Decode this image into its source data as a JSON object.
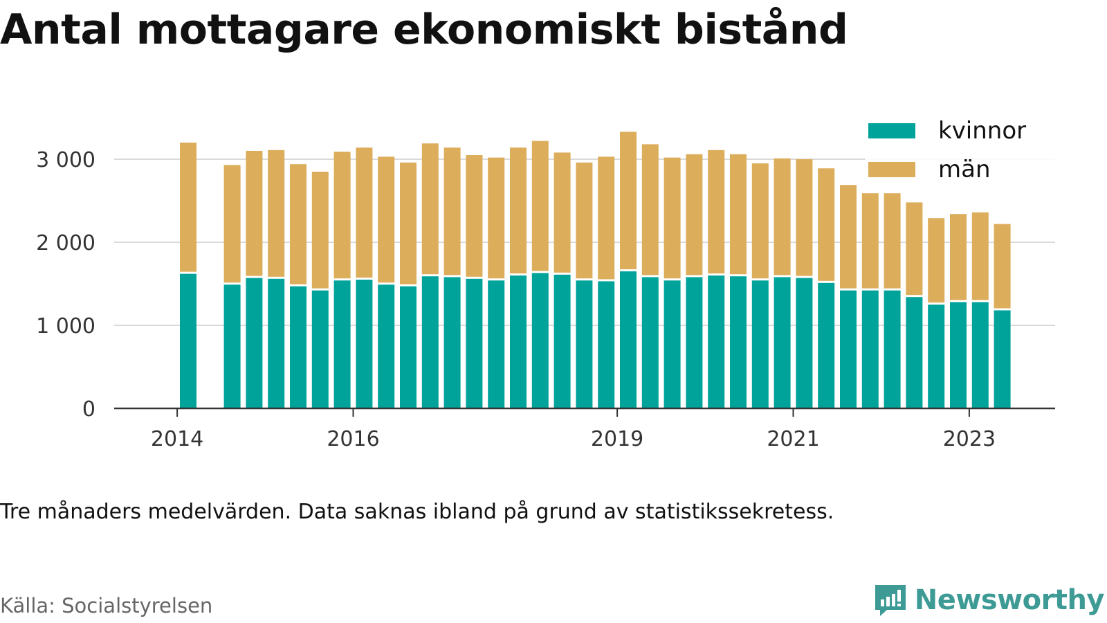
{
  "title": "Antal mottagare ekonomiskt bistånd",
  "note": "Tre månaders medelvärden. Data saknas ibland på grund av statistikssekretess.",
  "source": "Källa: Socialstyrelsen",
  "brand": "Newsworthy",
  "colors": {
    "kvinnor": "#00a39a",
    "man": "#dcad5a",
    "grid": "#d9d9d9",
    "axis": "#333333"
  },
  "chart_data": {
    "type": "bar",
    "stacked": true,
    "x_unit": "quarter",
    "x": [
      "2014-Q2",
      "2014-Q3",
      "2014-Q4",
      "2015-Q1",
      "2015-Q2",
      "2015-Q3",
      "2015-Q4",
      "2016-Q1",
      "2016-Q2",
      "2016-Q3",
      "2016-Q4",
      "2017-Q1",
      "2017-Q2",
      "2017-Q3",
      "2017-Q4",
      "2018-Q1",
      "2018-Q2",
      "2018-Q3",
      "2018-Q4",
      "2019-Q1",
      "2019-Q2",
      "2019-Q3",
      "2019-Q4",
      "2020-Q1",
      "2020-Q2",
      "2020-Q3",
      "2020-Q4",
      "2021-Q1",
      "2021-Q2",
      "2021-Q3",
      "2021-Q4",
      "2022-Q1",
      "2022-Q2",
      "2022-Q3",
      "2022-Q4",
      "2023-Q1",
      "2023-Q2",
      "2023-Q3"
    ],
    "series": [
      {
        "name": "kvinnor",
        "values": [
          1620,
          null,
          1490,
          1570,
          1560,
          1470,
          1420,
          1540,
          1550,
          1490,
          1470,
          1590,
          1580,
          1560,
          1540,
          1600,
          1630,
          1610,
          1540,
          1530,
          1650,
          1580,
          1540,
          1580,
          1600,
          1590,
          1540,
          1580,
          1570,
          1510,
          1420,
          1420,
          1420,
          1340,
          1250,
          1280,
          1280,
          1180
        ]
      },
      {
        "name": "män",
        "values": [
          1580,
          null,
          1440,
          1530,
          1550,
          1470,
          1430,
          1550,
          1590,
          1540,
          1490,
          1600,
          1560,
          1490,
          1480,
          1540,
          1590,
          1470,
          1420,
          1500,
          1680,
          1600,
          1480,
          1480,
          1510,
          1470,
          1410,
          1430,
          1430,
          1380,
          1270,
          1170,
          1170,
          1140,
          1040,
          1060,
          1080,
          1040
        ]
      }
    ],
    "x_ticks": [
      "2014",
      "2016",
      "2019",
      "2021",
      "2023"
    ],
    "y_ticks": [
      0,
      1000,
      2000,
      3000
    ],
    "y_tick_labels": [
      "0",
      "1 000",
      "2 000",
      "3 000"
    ],
    "ylim": [
      0,
      3000
    ],
    "grid": "horizontal",
    "legend": {
      "position": "top-right",
      "entries": [
        "kvinnor",
        "män"
      ]
    }
  }
}
